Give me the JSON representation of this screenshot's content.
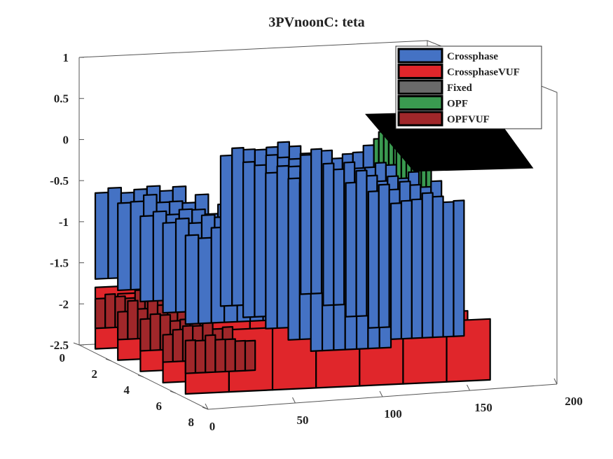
{
  "chart_data": {
    "type": "surface3d",
    "title": "3PVnoonC: teta",
    "xlabel": "",
    "ylabel": "",
    "zlabel": "",
    "x_ticks": [
      0,
      50,
      100,
      150,
      200
    ],
    "y_ticks": [
      0,
      2,
      4,
      6,
      8
    ],
    "z_ticks": [
      1,
      0.5,
      0,
      -0.5,
      -1,
      -1.5,
      -2,
      -2.5
    ],
    "xlim": [
      0,
      200
    ],
    "ylim": [
      0,
      8
    ],
    "zlim": [
      -2.5,
      1
    ],
    "legend_position": "top-right",
    "grid": false,
    "series": [
      {
        "name": "Crossphase",
        "color": "#4472c4",
        "segments": [
          {
            "x0": 0,
            "x1": 52,
            "ytop": -0.5,
            "ybottom": -1.6
          },
          {
            "x0": 72,
            "x1": 118,
            "ytop": -0.1,
            "ybottom": -2.0
          },
          {
            "x0": 118,
            "x1": 160,
            "ytop": -0.2,
            "ybottom": -1.9
          }
        ]
      },
      {
        "name": "CrossphaseVUF",
        "color": "#e0262b",
        "segments": [
          {
            "x0": 0,
            "x1": 175,
            "ytop": -1.7,
            "ybottom": -2.45
          }
        ]
      },
      {
        "name": "Fixed",
        "color": "#6a6a6a",
        "segments": [
          {
            "x0": 48,
            "x1": 54,
            "ytop": -0.9,
            "ybottom": -1.3
          }
        ]
      },
      {
        "name": "OPF",
        "color": "#3a9a50",
        "segments": [
          {
            "x0": 160,
            "x1": 180,
            "ytop": 0.0,
            "ybottom": -1.2
          }
        ]
      },
      {
        "name": "OPFVUF",
        "color": "#a0272a",
        "segments": [
          {
            "x0": 0,
            "x1": 40,
            "ytop": -1.8,
            "ybottom": -2.2
          }
        ]
      }
    ]
  }
}
